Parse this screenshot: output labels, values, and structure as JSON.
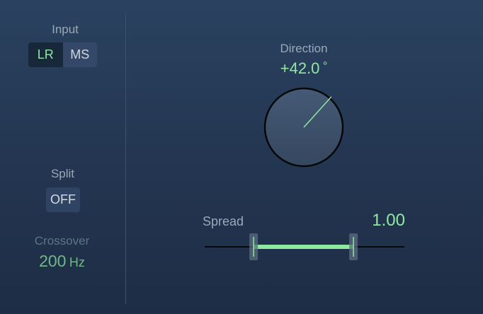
{
  "input": {
    "label": "Input",
    "options": [
      "LR",
      "MS"
    ],
    "selected": "LR"
  },
  "split": {
    "label": "Split",
    "value": "OFF"
  },
  "crossover": {
    "label": "Crossover",
    "value": "200",
    "unit": "Hz"
  },
  "direction": {
    "label": "Direction",
    "value": "+42.0",
    "unit": "°",
    "degrees": 42.0
  },
  "spread": {
    "label": "Spread",
    "value": "1.00",
    "range_start_fraction": 0.245,
    "range_end_fraction": 0.745
  },
  "colors": {
    "accent": "#8fe8a0",
    "background": "#233550"
  }
}
